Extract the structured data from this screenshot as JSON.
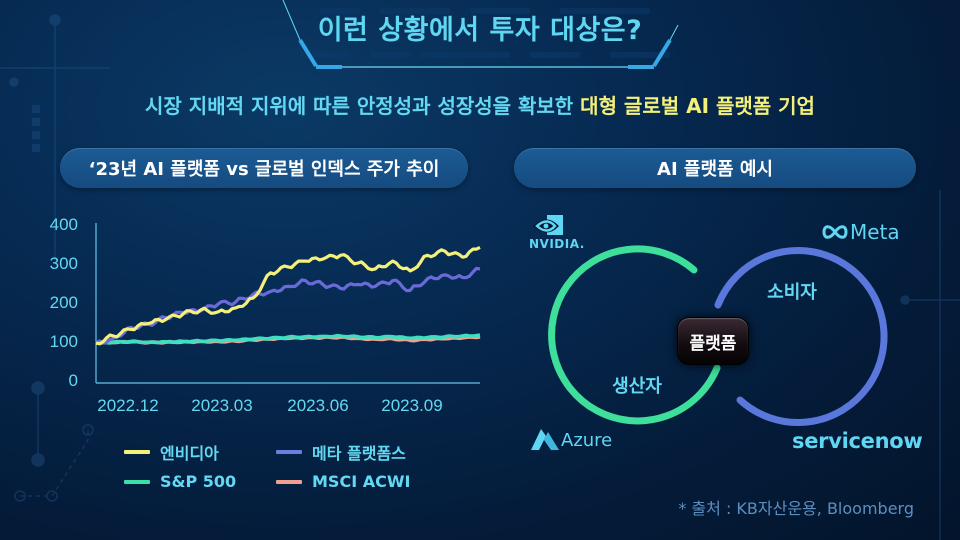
{
  "header": {
    "title": "이런 상황에서 투자 대상은?",
    "subtitle_prefix": "시장 지배적 지위에 따른 안정성과 성장성을 확보한 ",
    "subtitle_highlight": "대형 글로벌 AI 플랫폼 기업"
  },
  "left_panel": {
    "pill_label": "‘23년 AI 플랫폼 vs 글로벌 인덱스 주가 추이"
  },
  "right_panel": {
    "pill_label": "AI 플랫폼 예시",
    "venn": {
      "producer_label": "생산자",
      "consumer_label": "소비자",
      "center_label": "플랫폼",
      "producer_color": "#3ddf9a",
      "consumer_color": "#5a78dc"
    },
    "logos": [
      {
        "name": "NVIDIA",
        "text": "NVIDIA."
      },
      {
        "name": "Meta",
        "text": "Meta"
      },
      {
        "name": "Azure",
        "text": "Azure"
      },
      {
        "name": "servicenow",
        "text": "servicenow"
      }
    ]
  },
  "source": "* 출처 : KB자산운용, Bloomberg",
  "colors": {
    "title": "#5fd6f2",
    "highlight": "#f4f07a",
    "pill_bg": "#1a5690",
    "text_cyan": "#63d8f2"
  },
  "chart_data": {
    "type": "line",
    "title": "‘23년 AI 플랫폼 vs 글로벌 인덱스 주가 추이",
    "xlabel": "",
    "ylabel": "",
    "ylim": [
      0,
      400
    ],
    "yticks": [
      "400",
      "300",
      "200",
      "100",
      "0"
    ],
    "xticks": [
      "2022.12",
      "2023.03",
      "2023.06",
      "2023.09"
    ],
    "grid": false,
    "legend_position": "bottom",
    "x": [
      "2022.12",
      "2023.01a",
      "2023.01b",
      "2023.02a",
      "2023.02b",
      "2023.03a",
      "2023.03b",
      "2023.04a",
      "2023.04b",
      "2023.05a",
      "2023.05b",
      "2023.06a",
      "2023.06b",
      "2023.07a",
      "2023.07b",
      "2023.08a",
      "2023.08b",
      "2023.09a",
      "2023.09b",
      "2023.10a",
      "2023.10b",
      "2023.11a",
      "2023.11b"
    ],
    "series": [
      {
        "name": "엔비디아",
        "color": "#f4f07a",
        "values": [
          100,
          118,
          135,
          150,
          160,
          175,
          185,
          180,
          190,
          215,
          280,
          295,
          310,
          315,
          325,
          305,
          290,
          310,
          285,
          325,
          335,
          320,
          345
        ]
      },
      {
        "name": "메타 플랫폼스",
        "color": "#6a6ad8",
        "values": [
          100,
          112,
          140,
          148,
          165,
          178,
          182,
          200,
          205,
          225,
          232,
          245,
          260,
          250,
          240,
          250,
          245,
          260,
          235,
          265,
          275,
          268,
          290
        ]
      },
      {
        "name": "S&P 500",
        "color": "#3ddfc0",
        "values": [
          100,
          102,
          104,
          102,
          103,
          104,
          105,
          106,
          107,
          110,
          112,
          115,
          116,
          117,
          118,
          116,
          114,
          116,
          112,
          114,
          116,
          118,
          120
        ]
      },
      {
        "name": "MSCI ACWI",
        "color": "#f0a090",
        "values": [
          100,
          101,
          103,
          101,
          102,
          103,
          104,
          104,
          105,
          108,
          110,
          112,
          113,
          114,
          115,
          112,
          110,
          111,
          107,
          109,
          111,
          113,
          116
        ]
      }
    ]
  }
}
